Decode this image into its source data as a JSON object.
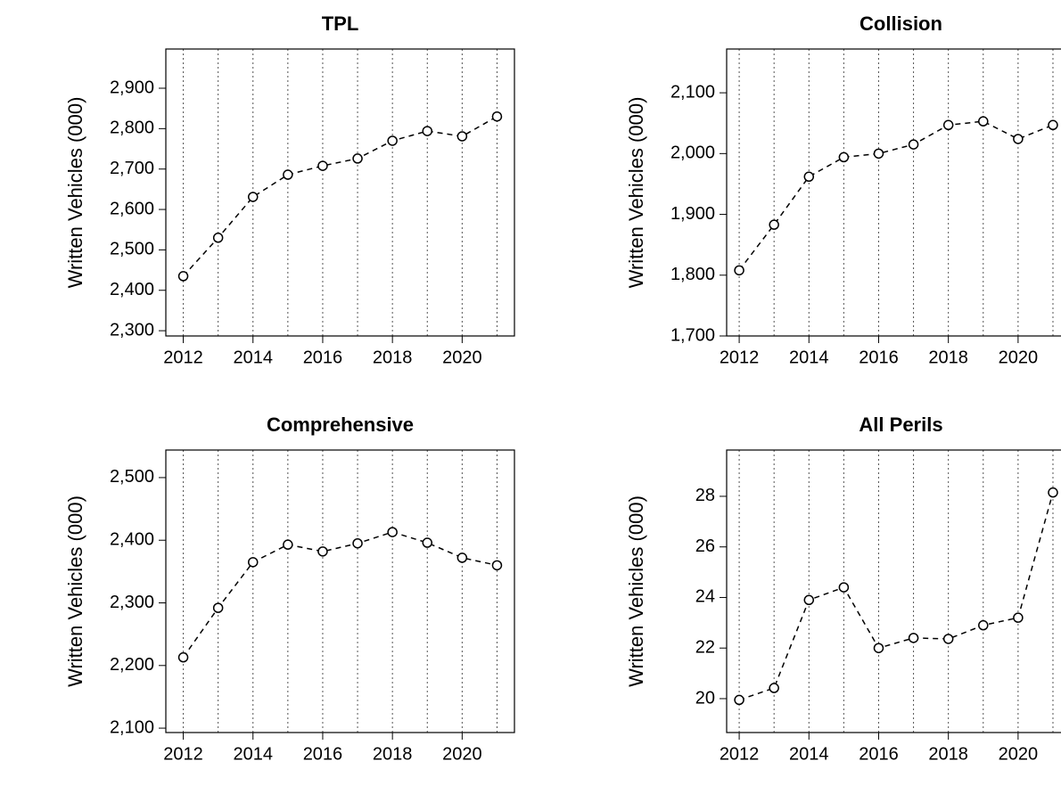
{
  "chart_data": [
    {
      "type": "line",
      "title": "TPL",
      "ylabel": "Written Vehicles (000)",
      "x": [
        2012,
        2013,
        2014,
        2015,
        2016,
        2017,
        2018,
        2019,
        2020,
        2021
      ],
      "values": [
        2435,
        2530,
        2631,
        2686,
        2708,
        2726,
        2770,
        2794,
        2781,
        2830
      ],
      "color": "#000000",
      "grid": "x",
      "xlim": [
        2011.5,
        2021.5
      ],
      "xticks": [
        2012,
        2014,
        2016,
        2018,
        2020
      ],
      "ylim": [
        2287,
        2997
      ],
      "yticks": [
        {
          "value": 2300,
          "label": "2,300"
        },
        {
          "value": 2400,
          "label": "2,400"
        },
        {
          "value": 2500,
          "label": "2,500"
        },
        {
          "value": 2600,
          "label": "2,600"
        },
        {
          "value": 2700,
          "label": "2,700"
        },
        {
          "value": 2800,
          "label": "2,800"
        },
        {
          "value": 2900,
          "label": "2,900"
        }
      ]
    },
    {
      "type": "line",
      "title": "Collision",
      "ylabel": "Written Vehicles (000)",
      "x": [
        2012,
        2013,
        2014,
        2015,
        2016,
        2017,
        2018,
        2019,
        2020,
        2021
      ],
      "values": [
        1808,
        1883,
        1962,
        1994,
        2000,
        2015,
        2047,
        2053,
        2024,
        2047
      ],
      "color": "#000000",
      "grid": "x",
      "xlim": [
        2011.64,
        2021.64
      ],
      "xticks": [
        2012,
        2014,
        2016,
        2018,
        2020
      ],
      "ylim": [
        1700,
        2172
      ],
      "yticks": [
        {
          "value": 1700,
          "label": "1,700"
        },
        {
          "value": 1800,
          "label": "1,800"
        },
        {
          "value": 1900,
          "label": "1,900"
        },
        {
          "value": 2000,
          "label": "2,000"
        },
        {
          "value": 2100,
          "label": "2,100"
        }
      ]
    },
    {
      "type": "line",
      "title": "Comprehensive",
      "ylabel": "Written Vehicles (000)",
      "x": [
        2012,
        2013,
        2014,
        2015,
        2016,
        2017,
        2018,
        2019,
        2020,
        2021
      ],
      "values": [
        2213,
        2292,
        2365,
        2393,
        2382,
        2395,
        2413,
        2396,
        2372,
        2360
      ],
      "color": "#000000",
      "grid": "x",
      "xlim": [
        2011.5,
        2021.5
      ],
      "xticks": [
        2012,
        2014,
        2016,
        2018,
        2020
      ],
      "ylim": [
        2093,
        2544
      ],
      "yticks": [
        {
          "value": 2100,
          "label": "2,100"
        },
        {
          "value": 2200,
          "label": "2,200"
        },
        {
          "value": 2300,
          "label": "2,300"
        },
        {
          "value": 2400,
          "label": "2,400"
        },
        {
          "value": 2500,
          "label": "2,500"
        }
      ]
    },
    {
      "type": "line",
      "title": "All Perils",
      "ylabel": "Written Vehicles (000)",
      "x": [
        2012,
        2013,
        2014,
        2015,
        2016,
        2017,
        2018,
        2019,
        2020,
        2021
      ],
      "values": [
        19.95,
        20.42,
        23.9,
        24.4,
        22.0,
        22.4,
        22.36,
        22.9,
        23.2,
        28.15
      ],
      "color": "#000000",
      "grid": "x",
      "xlim": [
        2011.64,
        2021.64
      ],
      "xticks": [
        2012,
        2014,
        2016,
        2018,
        2020
      ],
      "ylim": [
        18.66,
        29.83
      ],
      "yticks": [
        20,
        22,
        24,
        26,
        28
      ]
    }
  ]
}
